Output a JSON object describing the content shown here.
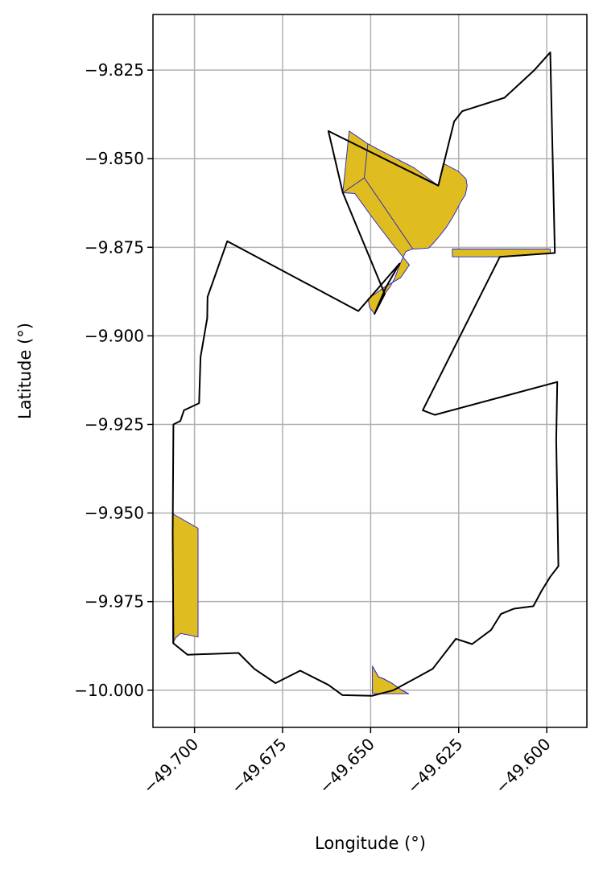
{
  "chart_data": {
    "type": "map",
    "xlabel": "Longitude (°)",
    "ylabel": "Latitude (°)",
    "xlim": [
      -49.7118,
      -49.5886
    ],
    "ylim": [
      -10.0105,
      -9.8093
    ],
    "grid": true,
    "xticks": [
      -49.7,
      -49.675,
      -49.65,
      -49.625,
      -49.6
    ],
    "yticks": [
      -9.825,
      -9.85,
      -9.875,
      -9.9,
      -9.925,
      -9.95,
      -9.975,
      -10.0
    ],
    "xtick_labels": [
      "−49.700",
      "−49.675",
      "−49.650",
      "−49.625",
      "−49.600"
    ],
    "ytick_labels": [
      "−9.825",
      "−9.850",
      "−9.875",
      "−9.900",
      "−9.925",
      "−9.950",
      "−9.975",
      "−10.000"
    ],
    "colors": {
      "fill": "#dfbc1f",
      "fill_edge": "#2222cc",
      "outline": "#000000",
      "grid": "#b0b0b0"
    },
    "filled_regions": [
      {
        "coords": [
          [
            -49.6561,
            -9.8422
          ],
          [
            -49.6508,
            -9.8458
          ],
          [
            -49.6468,
            -9.8479
          ],
          [
            -49.6376,
            -9.8526
          ],
          [
            -49.6308,
            -9.8576
          ],
          [
            -49.6294,
            -9.8513
          ],
          [
            -49.6252,
            -9.8535
          ],
          [
            -49.6229,
            -9.8557
          ],
          [
            -49.6226,
            -9.8576
          ],
          [
            -49.6231,
            -9.8602
          ],
          [
            -49.6244,
            -9.8622
          ],
          [
            -49.6257,
            -9.8647
          ],
          [
            -49.627,
            -9.867
          ],
          [
            -49.6284,
            -9.8692
          ],
          [
            -49.6301,
            -9.8714
          ],
          [
            -49.6318,
            -9.8734
          ],
          [
            -49.6335,
            -9.8752
          ],
          [
            -49.6359,
            -9.8754
          ],
          [
            -49.6381,
            -9.8755
          ],
          [
            -49.64,
            -9.8762
          ],
          [
            -49.6412,
            -9.8787
          ],
          [
            -49.6422,
            -9.8812
          ],
          [
            -49.6432,
            -9.8838
          ],
          [
            -49.6445,
            -9.8862
          ],
          [
            -49.646,
            -9.8882
          ],
          [
            -49.6477,
            -9.8908
          ],
          [
            -49.6489,
            -9.8938
          ],
          [
            -49.6503,
            -9.892
          ],
          [
            -49.6507,
            -9.8895
          ],
          [
            -49.646,
            -9.8862
          ],
          [
            -49.6415,
            -9.8836
          ],
          [
            -49.639,
            -9.88
          ],
          [
            -49.6441,
            -9.8737
          ],
          [
            -49.6493,
            -9.8669
          ],
          [
            -49.6545,
            -9.8598
          ],
          [
            -49.6579,
            -9.8596
          ]
        ]
      },
      {
        "coords": [
          [
            -49.6268,
            -9.8755
          ],
          [
            -49.6133,
            -9.8755
          ],
          [
            -49.6048,
            -9.8755
          ],
          [
            -49.599,
            -9.8755
          ],
          [
            -49.599,
            -9.8766
          ],
          [
            -49.6133,
            -9.8777
          ],
          [
            -49.6268,
            -9.8777
          ]
        ]
      },
      {
        "coords": [
          [
            -49.7062,
            -9.9502
          ],
          [
            -49.699,
            -9.9543
          ],
          [
            -49.699,
            -9.985
          ],
          [
            -49.7018,
            -9.9844
          ],
          [
            -49.704,
            -9.984
          ],
          [
            -49.7054,
            -9.9853
          ],
          [
            -49.7062,
            -9.9868
          ]
        ]
      },
      {
        "coords": [
          [
            -49.6495,
            -9.9932
          ],
          [
            -49.6478,
            -9.9962
          ],
          [
            -49.6463,
            -9.9968
          ],
          [
            -49.644,
            -9.998
          ],
          [
            -49.6412,
            -10.0
          ],
          [
            -49.6392,
            -10.001
          ],
          [
            -49.6495,
            -10.001
          ]
        ]
      }
    ],
    "fill_edges": [
      {
        "coords": [
          [
            -49.6508,
            -9.8458
          ],
          [
            -49.6518,
            -9.8554
          ],
          [
            -49.6579,
            -9.8596
          ]
        ]
      },
      {
        "coords": [
          [
            -49.6518,
            -9.8554
          ],
          [
            -49.638,
            -9.8755
          ]
        ]
      },
      {
        "coords": [
          [
            -49.6495,
            -9.9932
          ],
          [
            -49.6478,
            -9.9962
          ],
          [
            -49.6463,
            -9.9968
          ],
          [
            -49.644,
            -9.998
          ],
          [
            -49.6412,
            -10.0
          ],
          [
            -49.6392,
            -10.001
          ]
        ]
      }
    ],
    "outline_polygon": {
      "coords": [
        [
          -49.6987,
          -9.919
        ],
        [
          -49.6983,
          -9.906
        ],
        [
          -49.6964,
          -9.895
        ],
        [
          -49.6963,
          -9.889
        ],
        [
          -49.6907,
          -9.8733
        ],
        [
          -49.6535,
          -9.893
        ],
        [
          -49.6418,
          -9.8796
        ],
        [
          -49.6456,
          -9.8862
        ],
        [
          -49.6489,
          -9.8938
        ],
        [
          -49.646,
          -9.8882
        ],
        [
          -49.6579,
          -9.8596
        ],
        [
          -49.662,
          -9.8422
        ],
        [
          -49.6308,
          -9.8576
        ],
        [
          -49.6263,
          -9.8395
        ],
        [
          -49.624,
          -9.8366
        ],
        [
          -49.612,
          -9.8328
        ],
        [
          -49.6035,
          -9.825
        ],
        [
          -49.599,
          -9.82
        ],
        [
          -49.5977,
          -9.8766
        ],
        [
          -49.6133,
          -9.8777
        ],
        [
          -49.6352,
          -9.921
        ],
        [
          -49.6318,
          -9.9223
        ],
        [
          -49.597,
          -9.913
        ],
        [
          -49.5973,
          -9.9295
        ],
        [
          -49.5967,
          -9.965
        ],
        [
          -49.599,
          -9.968
        ],
        [
          -49.6015,
          -9.972
        ],
        [
          -49.6038,
          -9.9763
        ],
        [
          -49.6093,
          -9.977
        ],
        [
          -49.613,
          -9.9785
        ],
        [
          -49.6158,
          -9.983
        ],
        [
          -49.6212,
          -9.987
        ],
        [
          -49.6258,
          -9.9855
        ],
        [
          -49.6324,
          -9.994
        ],
        [
          -49.6435,
          -10.0
        ],
        [
          -49.6496,
          -10.0016
        ],
        [
          -49.658,
          -10.0014
        ],
        [
          -49.662,
          -9.9985
        ],
        [
          -49.67,
          -9.9945
        ],
        [
          -49.677,
          -9.998
        ],
        [
          -49.683,
          -9.994
        ],
        [
          -49.6875,
          -9.9895
        ],
        [
          -49.702,
          -9.99
        ],
        [
          -49.706,
          -9.9868
        ],
        [
          -49.7062,
          -9.956
        ],
        [
          -49.706,
          -9.925
        ],
        [
          -49.704,
          -9.924
        ],
        [
          -49.703,
          -9.921
        ]
      ]
    }
  }
}
